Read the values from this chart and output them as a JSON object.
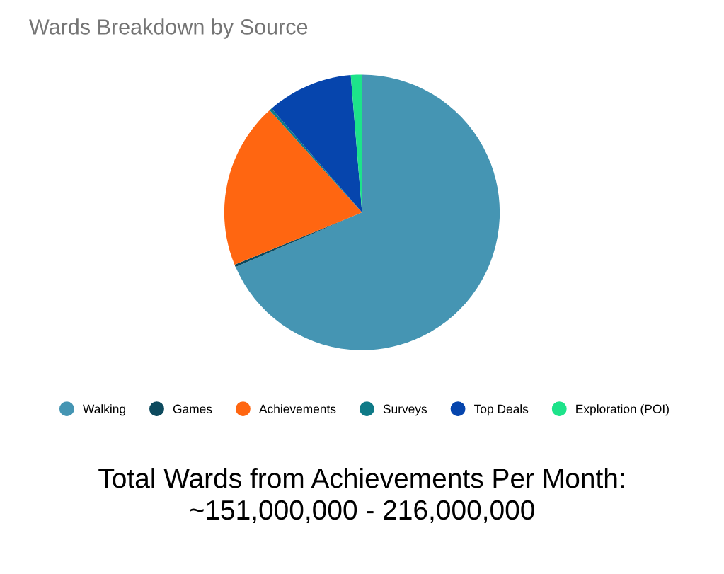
{
  "chart_data": {
    "type": "pie",
    "title": "Wards Breakdown by Source",
    "categories": [
      "Walking",
      "Games",
      "Achievements",
      "Surveys",
      "Top Deals",
      "Exploration (POI)"
    ],
    "values": [
      68.5,
      0.3,
      19.5,
      0.3,
      10.1,
      1.3
    ],
    "colors": [
      "#4595b3",
      "#0d4a5e",
      "#ff6611",
      "#0f7a87",
      "#0645ad",
      "#1de38a"
    ],
    "legend": "bottom",
    "annotations": [
      "Total Wards from Achievements Per Month:\n~151,000,000 - 216,000,000"
    ]
  }
}
